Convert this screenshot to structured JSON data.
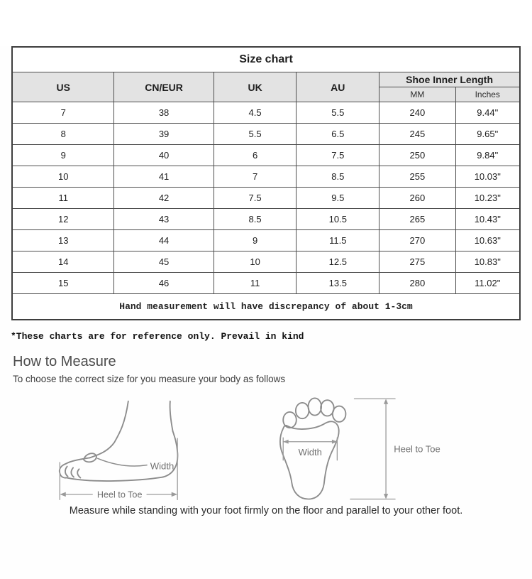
{
  "chart_data": {
    "type": "table",
    "title": "Size chart",
    "column_groups": {
      "main": [
        "US",
        "CN/EUR",
        "UK",
        "AU"
      ],
      "inner_length": {
        "label": "Shoe Inner Length",
        "sub": [
          "MM",
          "Inches"
        ]
      }
    },
    "columns_flat": [
      "US",
      "CN/EUR",
      "UK",
      "AU",
      "Shoe Inner Length MM",
      "Shoe Inner Length Inches"
    ],
    "rows": [
      [
        "7",
        "38",
        "4.5",
        "5.5",
        "240",
        "9.44\""
      ],
      [
        "8",
        "39",
        "5.5",
        "6.5",
        "245",
        "9.65\""
      ],
      [
        "9",
        "40",
        "6",
        "7.5",
        "250",
        "9.84\""
      ],
      [
        "10",
        "41",
        "7",
        "8.5",
        "255",
        "10.03\""
      ],
      [
        "11",
        "42",
        "7.5",
        "9.5",
        "260",
        "10.23\""
      ],
      [
        "12",
        "43",
        "8.5",
        "10.5",
        "265",
        "10.43\""
      ],
      [
        "13",
        "44",
        "9",
        "11.5",
        "270",
        "10.63\""
      ],
      [
        "14",
        "45",
        "10",
        "12.5",
        "275",
        "10.83\""
      ],
      [
        "15",
        "46",
        "11",
        "13.5",
        "280",
        "11.02\""
      ]
    ],
    "note": "Hand measurement will have discrepancy of about 1-3cm"
  },
  "disclaimer": "*These charts are for reference only. Prevail in kind",
  "measure": {
    "heading": "How to Measure",
    "subtitle": "To choose the correct size for you measure your body as follows",
    "labels": {
      "width": "Width",
      "heel_to_toe": "Heel to Toe"
    },
    "footnote": "Measure while standing with your foot firmly on the floor and parallel to your other foot."
  },
  "colors": {
    "header_bg": "#e3e3e3",
    "table_border": "#4d4d4d",
    "diagram_line": "#8c8c8c",
    "diagram_label": "#707070"
  }
}
